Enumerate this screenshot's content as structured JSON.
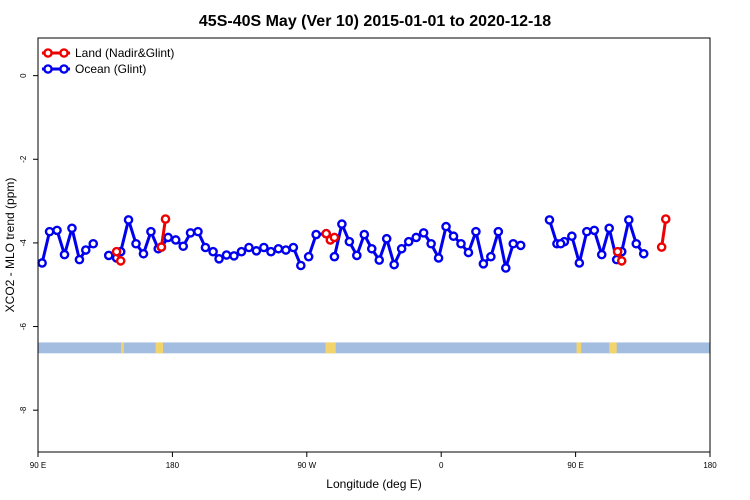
{
  "chart_data": {
    "type": "line",
    "title": "45S-40S May (Ver 10)   2015-01-01 to 2020-12-18",
    "xlabel": "Longitude (deg E)",
    "ylabel": "XCO2 - MLO trend (ppm)",
    "xlim": [
      90,
      450
    ],
    "ylim": [
      -9.0,
      0.9
    ],
    "x_ticks": [
      90,
      162,
      234,
      306,
      378,
      450
    ],
    "x_tick_labels": [
      "90 E",
      "180",
      "90 W",
      "0",
      "90 E",
      "180"
    ],
    "y_ticks": [
      0,
      -2,
      -4,
      -6,
      -8
    ],
    "y_tick_labels": [
      "0",
      "-2",
      "-4",
      "-6",
      "-8"
    ],
    "legend": {
      "position": "top-left",
      "entries": [
        "Land (Nadir&Glint)",
        "Ocean (Glint)"
      ]
    },
    "colors": {
      "land": "#ee0000",
      "ocean": "#0000ee",
      "ocean_band": "#a3bde0",
      "land_band": "#f3d36b"
    },
    "land_band": {
      "y_range": [
        -6.64,
        -6.38
      ],
      "land_intervals": [
        [
          134.5,
          136.0
        ],
        [
          153.0,
          157.0
        ],
        [
          244.0,
          249.5
        ],
        [
          378.5,
          381.0
        ],
        [
          396.0,
          400.0
        ]
      ]
    },
    "series": [
      {
        "name": "Land (Nadir&Glint)",
        "segments": [
          [
            [
              132.1,
              -4.21
            ],
            [
              134.3,
              -4.43
            ]
          ],
          [
            [
              156.1,
              -4.1
            ],
            [
              158.3,
              -3.43
            ]
          ],
          [
            [
              244.4,
              -3.78
            ],
            [
              246.6,
              -3.93
            ],
            [
              248.8,
              -3.87
            ]
          ],
          [
            [
              400.5,
              -4.21
            ],
            [
              402.7,
              -4.43
            ]
          ],
          [
            [
              424.1,
              -4.1
            ],
            [
              426.3,
              -3.43
            ]
          ]
        ]
      },
      {
        "name": "Ocean (Glint)",
        "segments": [
          [
            [
              92.2,
              -4.48
            ],
            [
              96.2,
              -3.73
            ],
            [
              100.2,
              -3.7
            ],
            [
              104.2,
              -4.28
            ],
            [
              108.2,
              -3.65
            ],
            [
              112.2,
              -4.4
            ],
            [
              115.6,
              -4.17
            ],
            [
              119.6,
              -4.02
            ]
          ],
          [
            [
              127.9,
              -4.3
            ],
            [
              132.1,
              -4.36
            ],
            [
              134.3,
              -4.21
            ],
            [
              138.5,
              -3.45
            ],
            [
              142.5,
              -4.02
            ],
            [
              146.5,
              -4.26
            ],
            [
              150.5,
              -3.73
            ],
            [
              154.4,
              -4.14
            ],
            [
              156.1,
              -4.1
            ],
            [
              159.7,
              -3.87
            ],
            [
              163.8,
              -3.93
            ],
            [
              167.8,
              -4.08
            ],
            [
              171.7,
              -3.76
            ],
            [
              175.7,
              -3.73
            ],
            [
              179.7,
              -4.11
            ],
            [
              183.8,
              -4.21
            ],
            [
              187.0,
              -4.38
            ],
            [
              191.0,
              -4.29
            ],
            [
              195.0,
              -4.31
            ],
            [
              199.0,
              -4.21
            ],
            [
              203.0,
              -4.11
            ],
            [
              207.0,
              -4.19
            ],
            [
              211.0,
              -4.11
            ],
            [
              214.8,
              -4.21
            ],
            [
              218.8,
              -4.14
            ],
            [
              222.8,
              -4.17
            ],
            [
              226.8,
              -4.11
            ],
            [
              230.8,
              -4.54
            ]
          ]
        ]
      },
      {
        "name": "Ocean (Glint)",
        "segments": [
          [
            [
              235.0,
              -4.33
            ],
            [
              239.0,
              -3.8
            ],
            [
              244.4,
              -3.78
            ]
          ],
          [
            [
              248.8,
              -4.33
            ],
            [
              252.8,
              -3.55
            ],
            [
              256.8,
              -3.97
            ],
            [
              260.8,
              -4.3
            ],
            [
              264.8,
              -3.8
            ],
            [
              268.8,
              -4.14
            ],
            [
              272.8,
              -4.41
            ],
            [
              276.8,
              -3.9
            ],
            [
              280.8,
              -4.52
            ],
            [
              284.8,
              -4.14
            ],
            [
              288.6,
              -3.97
            ],
            [
              292.6,
              -3.87
            ],
            [
              296.6,
              -3.76
            ],
            [
              300.6,
              -4.02
            ],
            [
              304.6,
              -4.36
            ],
            [
              308.6,
              -3.61
            ],
            [
              312.6,
              -3.84
            ],
            [
              316.6,
              -4.02
            ],
            [
              320.6,
              -4.23
            ],
            [
              324.6,
              -3.73
            ],
            [
              328.6,
              -4.5
            ],
            [
              332.6,
              -4.33
            ],
            [
              336.6,
              -3.73
            ],
            [
              340.6,
              -4.6
            ],
            [
              344.6,
              -4.02
            ],
            [
              348.6,
              -4.06
            ]
          ],
          [
            [
              364.0,
              -3.45
            ],
            [
              368.0,
              -4.02
            ],
            [
              372.0,
              -3.97
            ],
            [
              376.0,
              -3.84
            ],
            [
              380.0,
              -4.48
            ],
            [
              384.0,
              -3.73
            ],
            [
              388.0,
              -3.7
            ],
            [
              392.0,
              -4.28
            ],
            [
              396.0,
              -3.65
            ],
            [
              400.0,
              -4.4
            ],
            [
              402.7,
              -4.21
            ],
            [
              406.5,
              -3.45
            ],
            [
              410.5,
              -4.02
            ],
            [
              414.5,
              -4.26
            ]
          ],
          [
            [
              370.0,
              -4.02
            ]
          ]
        ]
      }
    ]
  }
}
